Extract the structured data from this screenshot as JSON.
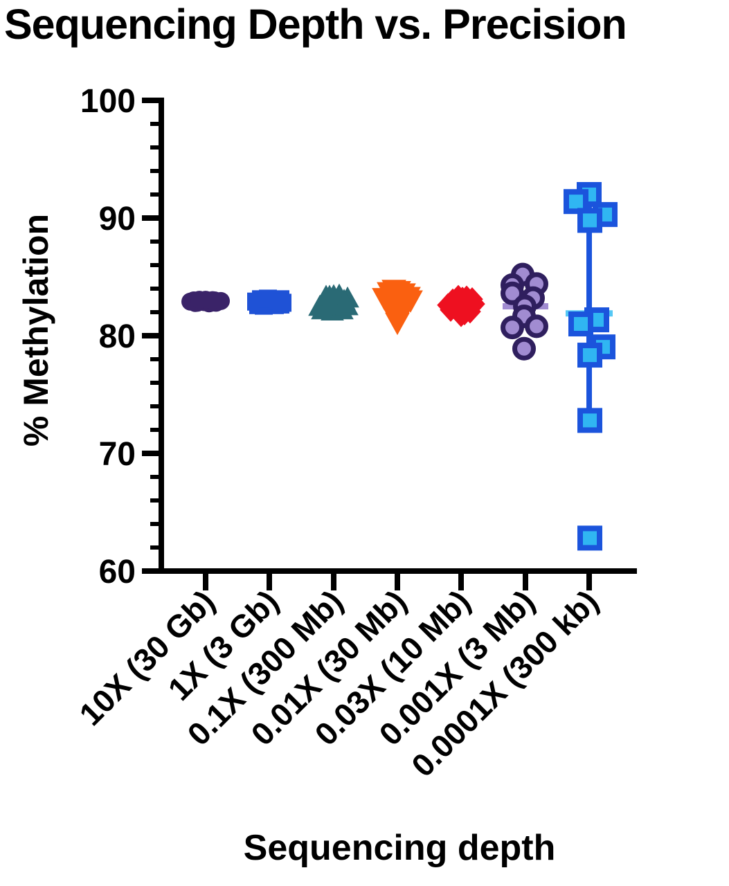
{
  "title": "Sequencing Depth vs. Precision",
  "y_axis": {
    "label": "% Methylation",
    "tick_labels": [
      "100",
      "90",
      "80",
      "70",
      "60"
    ]
  },
  "x_axis": {
    "label": "Sequencing depth",
    "categories": [
      "10X (30 Gb)",
      "1X (3 Gb)",
      "0.1X (300 Mb)",
      "0.01X (30 Mb)",
      "0.03X (10 Mb)",
      "0.001X (3 Mb)",
      "0.0001X (300 kb)"
    ]
  },
  "chart_data": {
    "type": "scatter",
    "title": "Sequencing Depth vs. Precision",
    "xlabel": "Sequencing depth",
    "ylabel": "% Methylation",
    "ylim": [
      60,
      100
    ],
    "y_major_ticks": [
      100,
      90,
      80,
      70,
      60
    ],
    "y_minor_step": 2,
    "grid": false,
    "legend": "none",
    "categories": [
      "10X (30 Gb)",
      "1X (3 Gb)",
      "0.1X (300 Mb)",
      "0.01X (30 Mb)",
      "0.03X (10 Mb)",
      "0.001X (3 Mb)",
      "0.0001X (300 kb)"
    ],
    "series": [
      {
        "name": "10X (30 Gb)",
        "marker": "circle",
        "color": "#3a2368",
        "size": 26,
        "approx_mean": 82.9,
        "points": [
          [
            -22,
            82.9
          ],
          [
            -17,
            83.0
          ],
          [
            -12,
            82.8
          ],
          [
            -7,
            83.0
          ],
          [
            -2,
            82.85
          ],
          [
            3,
            83.0
          ],
          [
            8,
            82.8
          ],
          [
            13,
            83.0
          ],
          [
            18,
            82.9
          ],
          [
            22,
            82.95
          ],
          [
            -15,
            82.78
          ],
          [
            5,
            82.75
          ],
          [
            15,
            82.8
          ],
          [
            0,
            83.05
          ],
          [
            -9,
            83.05
          ],
          [
            10,
            83.02
          ]
        ]
      },
      {
        "name": "1X (3 Gb)",
        "marker": "square",
        "color": "#1f52d6",
        "size": 26,
        "approx_mean": 82.9,
        "points": [
          [
            -19,
            82.9
          ],
          [
            -12,
            83.1
          ],
          [
            -5,
            82.8
          ],
          [
            2,
            83.05
          ],
          [
            9,
            82.9
          ],
          [
            16,
            83.1
          ],
          [
            -16,
            82.6
          ],
          [
            -8,
            82.55
          ],
          [
            0,
            82.7
          ],
          [
            8,
            82.6
          ],
          [
            16,
            82.65
          ],
          [
            -2,
            83.15
          ],
          [
            12,
            82.95
          ],
          [
            19,
            82.8
          ]
        ]
      },
      {
        "name": "0.1X (300 Mb)",
        "marker": "triangle-up",
        "color": "#2a6a75",
        "size": 32,
        "approx_mean": 82.7,
        "points": [
          [
            -20,
            82.4
          ],
          [
            -13,
            82.9
          ],
          [
            -6,
            83.25
          ],
          [
            1,
            82.8
          ],
          [
            8,
            83.35
          ],
          [
            15,
            82.9
          ],
          [
            20,
            83.1
          ],
          [
            -16,
            82.1
          ],
          [
            -9,
            82.3
          ],
          [
            -2,
            82.0
          ],
          [
            5,
            82.2
          ],
          [
            12,
            82.1
          ],
          [
            19,
            82.45
          ],
          [
            0,
            83.3
          ],
          [
            -11,
            83.25
          ],
          [
            9,
            83.15
          ],
          [
            16,
            82.7
          ],
          [
            -5,
            82.55
          ]
        ]
      },
      {
        "name": "0.01X (30 Mb)",
        "marker": "triangle-down",
        "color": "#fa6010",
        "size": 34,
        "approx_mean": 82.9,
        "points": [
          [
            -19,
            83.3
          ],
          [
            -12,
            83.8
          ],
          [
            -5,
            84.0
          ],
          [
            2,
            83.9
          ],
          [
            9,
            83.7
          ],
          [
            16,
            83.4
          ],
          [
            19,
            83.1
          ],
          [
            -15,
            82.9
          ],
          [
            -8,
            82.6
          ],
          [
            -1,
            82.8
          ],
          [
            6,
            82.5
          ],
          [
            13,
            82.7
          ],
          [
            -4,
            82.0
          ],
          [
            3,
            81.9
          ],
          [
            0,
            81.2
          ]
        ]
      },
      {
        "name": "0.03X (10 Mb)",
        "marker": "diamond",
        "color": "#ee1020",
        "size": 30,
        "approx_mean": 82.6,
        "points": [
          [
            -19,
            82.6
          ],
          [
            -12,
            83.0
          ],
          [
            -5,
            82.8
          ],
          [
            2,
            83.15
          ],
          [
            9,
            82.9
          ],
          [
            16,
            83.1
          ],
          [
            19,
            82.7
          ],
          [
            -15,
            82.2
          ],
          [
            -8,
            82.35
          ],
          [
            -1,
            82.1
          ],
          [
            6,
            82.25
          ],
          [
            13,
            82.05
          ],
          [
            -4,
            83.3
          ],
          [
            8,
            83.25
          ],
          [
            0,
            81.75
          ],
          [
            5,
            81.9
          ]
        ]
      },
      {
        "name": "0.001X (3 Mb)",
        "marker": "circle-outline",
        "fill": "#a18cd1",
        "stroke": "#2f1f5e",
        "stroke_width": 7,
        "size": 34,
        "mean": 82.5,
        "mean_halfwidth": 33,
        "mean_color": "#a18cd1",
        "error_bar": [
          81.3,
          83.7
        ],
        "error_color": "#a18cd1",
        "points": [
          [
            -4,
            85.2
          ],
          [
            -19,
            84.3
          ],
          [
            16,
            84.4
          ],
          [
            -19,
            83.6
          ],
          [
            11,
            83.2
          ],
          [
            -1,
            82.5
          ],
          [
            -2,
            81.65
          ],
          [
            -19,
            80.7
          ],
          [
            16,
            80.8
          ],
          [
            -2,
            78.9
          ]
        ]
      },
      {
        "name": "0.0001X (300 kb)",
        "marker": "square-outline",
        "fill": "#30b6f2",
        "stroke": "#1b54dc",
        "stroke_width": 8,
        "size": 36,
        "mean": 81.9,
        "mean_halfwidth": 34,
        "mean_color": "#55c8f5",
        "error_bar": [
          72.8,
          92.0
        ],
        "error_color": "#1b54dc",
        "points": [
          [
            0,
            92.0
          ],
          [
            -19,
            91.4
          ],
          [
            23,
            90.3
          ],
          [
            1,
            89.8
          ],
          [
            11,
            81.35
          ],
          [
            -12,
            81.0
          ],
          [
            20,
            79.05
          ],
          [
            1,
            78.35
          ],
          [
            1,
            72.8
          ],
          [
            1,
            62.8
          ]
        ]
      }
    ]
  }
}
